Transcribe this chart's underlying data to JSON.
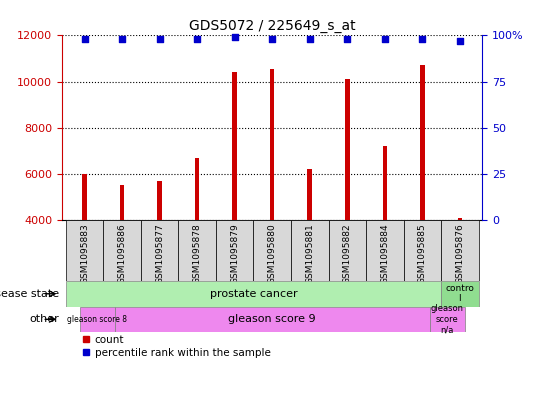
{
  "title": "GDS5072 / 225649_s_at",
  "samples": [
    "GSM1095883",
    "GSM1095886",
    "GSM1095877",
    "GSM1095878",
    "GSM1095879",
    "GSM1095880",
    "GSM1095881",
    "GSM1095882",
    "GSM1095884",
    "GSM1095885",
    "GSM1095876"
  ],
  "counts": [
    6000,
    5500,
    5700,
    6700,
    10400,
    10550,
    6200,
    10100,
    7200,
    10700,
    4100
  ],
  "percentile_ranks": [
    98,
    98,
    98,
    98,
    99,
    98,
    98,
    98,
    98,
    98,
    97
  ],
  "ylim_left": [
    4000,
    12000
  ],
  "ylim_right": [
    0,
    100
  ],
  "yticks_left": [
    4000,
    6000,
    8000,
    10000,
    12000
  ],
  "yticks_right": [
    0,
    25,
    50,
    75,
    100
  ],
  "bar_color": "#cc0000",
  "dot_color": "#0000cc",
  "bg_color": "#ffffff",
  "tick_bg_color": "#d8d8d8",
  "disease_pc_color": "#b0eeb0",
  "disease_ctrl_color": "#90dd90",
  "other_color": "#ee88ee",
  "legend_items": [
    {
      "color": "#cc0000",
      "label": "count"
    },
    {
      "color": "#0000cc",
      "label": "percentile rank within the sample"
    }
  ]
}
